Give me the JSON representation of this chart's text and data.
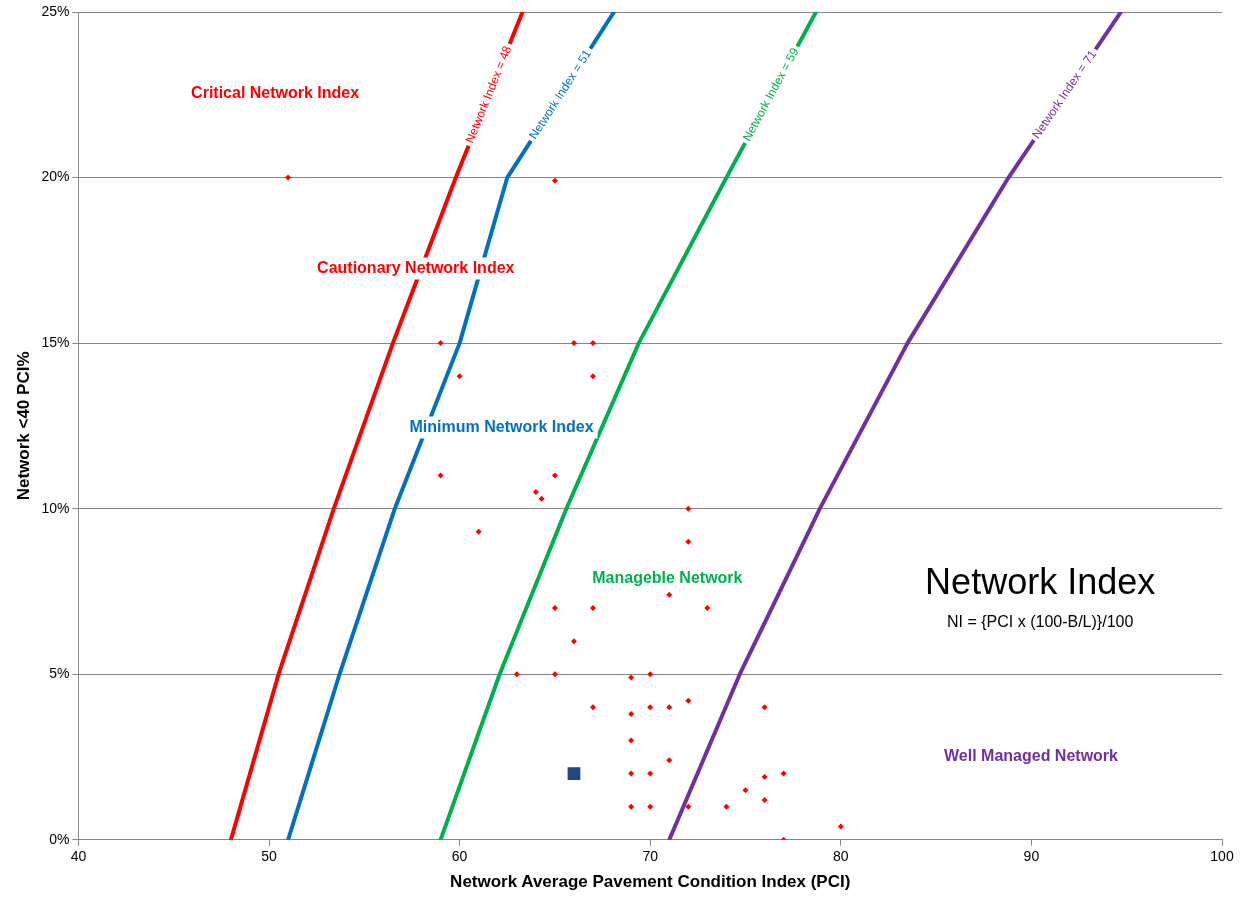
{
  "chart_data": {
    "type": "scatter",
    "xlabel": "Network Average Pavement Condition Index (PCI)",
    "ylabel": "Network <40 PCI%",
    "xlim": [
      40,
      100
    ],
    "xticks": [
      40,
      50,
      60,
      70,
      80,
      90,
      100
    ],
    "ylim": [
      0,
      25
    ],
    "yticks": [
      {
        "value": 0,
        "label": "0%"
      },
      {
        "value": 5,
        "label": "5%"
      },
      {
        "value": 10,
        "label": "10%"
      },
      {
        "value": 15,
        "label": "15%"
      },
      {
        "value": 20,
        "label": "20%"
      },
      {
        "value": 25,
        "label": "25%"
      }
    ],
    "grid": "y",
    "legend": false,
    "marker": "diamond",
    "series": [
      {
        "name": "Network Index = 48",
        "type": "line",
        "marker": "none",
        "color": "#ff0000",
        "x": [
          48,
          50.5,
          53.4,
          56.5,
          59.8,
          63.3
        ],
        "values": [
          0,
          5,
          10,
          15,
          20,
          25
        ]
      },
      {
        "name": "Network Index = 51",
        "type": "line",
        "marker": "none",
        "color": "#0070c0",
        "x": [
          51,
          53.7,
          56.6,
          60,
          62.5,
          68.1
        ],
        "values": [
          0,
          5,
          10,
          15,
          20,
          25
        ]
      },
      {
        "name": "Network Index = 59",
        "type": "line",
        "marker": "none",
        "color": "#00b050",
        "x": [
          59,
          62.1,
          65.6,
          69.4,
          74,
          78.7
        ],
        "values": [
          0,
          5,
          10,
          15,
          20,
          25
        ]
      },
      {
        "name": "Network Index = 71",
        "type": "line",
        "marker": "none",
        "color": "#7030a0",
        "x": [
          71,
          74.7,
          78.9,
          83.5,
          88.8,
          94.7
        ],
        "values": [
          0,
          5,
          10,
          15,
          20,
          25
        ]
      },
      {
        "color": "#ff0000",
        "x": [
          51,
          65,
          59,
          66,
          67,
          60,
          67,
          59,
          65,
          64,
          64.3,
          61,
          72,
          72,
          71,
          65,
          67,
          73,
          66,
          63,
          65,
          69,
          70,
          67,
          69,
          70,
          71,
          72,
          76,
          69,
          71,
          69,
          70,
          77,
          76,
          75,
          76,
          69,
          70,
          72,
          74,
          80,
          77
        ],
        "values": [
          20,
          19.9,
          15,
          15,
          15,
          14,
          14,
          11,
          11,
          10.5,
          10.3,
          9.3,
          10,
          9,
          7.4,
          7,
          7,
          7,
          6,
          5,
          5,
          4.9,
          5,
          4,
          3.8,
          4,
          4,
          4.2,
          4,
          3,
          2.4,
          2,
          2,
          2,
          1.9,
          1.5,
          1.2,
          1,
          1,
          1,
          1,
          0.4,
          0
        ]
      },
      {
        "type": "scatter",
        "marker": "square",
        "color": "#1f497d",
        "x": [
          66
        ],
        "values": [
          2
        ]
      }
    ],
    "annotations": [
      "Critical Network Index",
      "Cautionary Network Index",
      "Minimum Network Index",
      "Manageble Network",
      "Well Managed Network",
      "Network Index",
      "NI = {PCI x (100-B/L)}/100"
    ]
  }
}
